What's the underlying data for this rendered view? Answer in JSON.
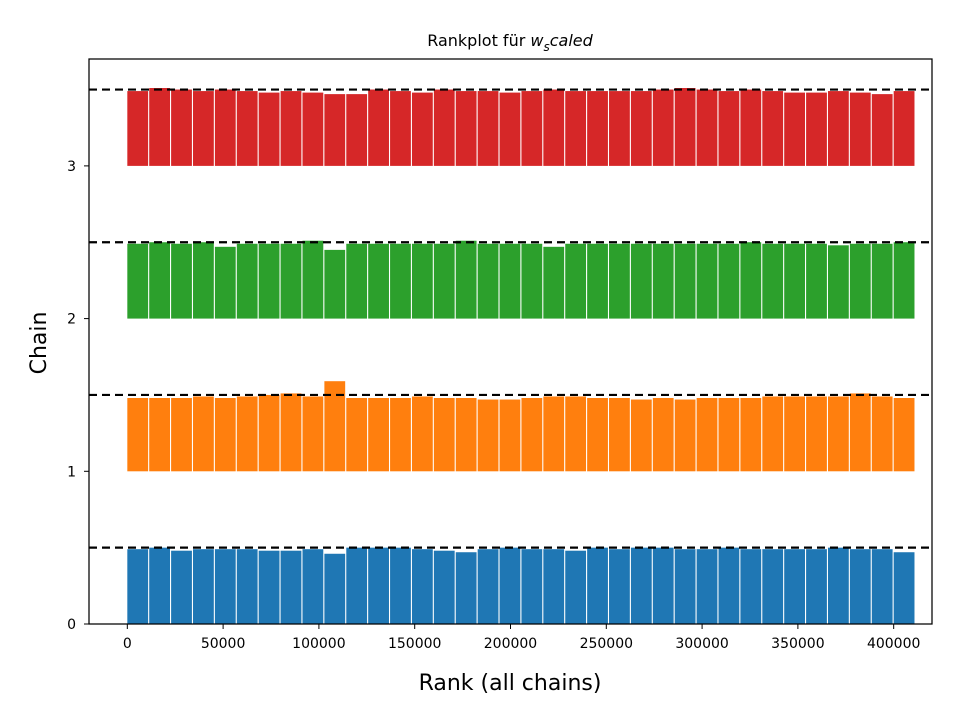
{
  "chart_data": {
    "type": "bar",
    "title_prefix": "Rankplot für ",
    "title_math_w": "w",
    "title_math_sub": "s",
    "title_math_rest": "caled",
    "xlabel": "Rank (all chains)",
    "ylabel": "Chain",
    "xlim": [
      -20000,
      420000
    ],
    "ylim": [
      0,
      3.7
    ],
    "x_ticks": [
      0,
      50000,
      100000,
      150000,
      200000,
      250000,
      300000,
      350000,
      400000
    ],
    "x_tick_labels": [
      "0",
      "50000",
      "100000",
      "150000",
      "200000",
      "250000",
      "300000",
      "350000",
      "400000"
    ],
    "y_ticks": [
      0,
      1,
      2,
      3
    ],
    "y_tick_labels": [
      "0",
      "1",
      "2",
      "3"
    ],
    "grid": false,
    "bin_start": 0,
    "bin_width": 11428.57,
    "bar_fill_fraction": 0.95,
    "reference_line_height": 0.5,
    "series": [
      {
        "chain": 0,
        "color": "#1f77b4",
        "values": [
          0.49,
          0.5,
          0.48,
          0.49,
          0.49,
          0.49,
          0.48,
          0.48,
          0.49,
          0.46,
          0.5,
          0.5,
          0.5,
          0.49,
          0.48,
          0.47,
          0.49,
          0.5,
          0.49,
          0.49,
          0.48,
          0.5,
          0.49,
          0.5,
          0.5,
          0.49,
          0.49,
          0.5,
          0.49,
          0.49,
          0.49,
          0.49,
          0.5,
          0.49,
          0.49,
          0.47
        ]
      },
      {
        "chain": 1,
        "color": "#ff7f0e",
        "values": [
          0.48,
          0.48,
          0.48,
          0.49,
          0.48,
          0.49,
          0.5,
          0.51,
          0.49,
          0.59,
          0.48,
          0.48,
          0.48,
          0.49,
          0.48,
          0.48,
          0.47,
          0.47,
          0.48,
          0.49,
          0.49,
          0.48,
          0.48,
          0.47,
          0.48,
          0.47,
          0.48,
          0.48,
          0.48,
          0.49,
          0.49,
          0.49,
          0.49,
          0.51,
          0.49,
          0.48
        ]
      },
      {
        "chain": 2,
        "color": "#2ca02c",
        "values": [
          0.49,
          0.5,
          0.49,
          0.5,
          0.47,
          0.49,
          0.49,
          0.49,
          0.51,
          0.45,
          0.49,
          0.49,
          0.49,
          0.49,
          0.49,
          0.51,
          0.49,
          0.49,
          0.49,
          0.47,
          0.49,
          0.49,
          0.49,
          0.49,
          0.49,
          0.49,
          0.49,
          0.49,
          0.5,
          0.49,
          0.49,
          0.49,
          0.48,
          0.49,
          0.49,
          0.5
        ]
      },
      {
        "chain": 3,
        "color": "#d62728",
        "values": [
          0.49,
          0.51,
          0.5,
          0.49,
          0.5,
          0.49,
          0.48,
          0.49,
          0.48,
          0.47,
          0.47,
          0.5,
          0.49,
          0.48,
          0.5,
          0.49,
          0.49,
          0.48,
          0.49,
          0.5,
          0.49,
          0.49,
          0.49,
          0.49,
          0.5,
          0.51,
          0.5,
          0.49,
          0.5,
          0.49,
          0.48,
          0.48,
          0.49,
          0.48,
          0.47,
          0.49
        ]
      }
    ]
  }
}
